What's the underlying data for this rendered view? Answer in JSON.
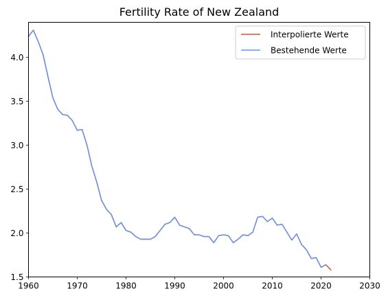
{
  "chart_data": {
    "type": "line",
    "title": "Fertility Rate of New Zealand",
    "xlabel": "",
    "ylabel": "",
    "xlim": [
      1960,
      2030
    ],
    "ylim": [
      1.5,
      4.4
    ],
    "x_ticks": [
      1960,
      1970,
      1980,
      1990,
      2000,
      2010,
      2020,
      2030
    ],
    "y_ticks": [
      1.5,
      2.0,
      2.5,
      3.0,
      3.5,
      4.0
    ],
    "y_tick_labels": [
      "1.5",
      "2.0",
      "2.5",
      "3.0",
      "3.5",
      "4.0"
    ],
    "grid": false,
    "legend_position": "top-right",
    "series": [
      {
        "name": "Interpolierte Werte",
        "color": "#e8501e",
        "x": [
          1960,
          1961,
          1962,
          1963,
          1964,
          1965,
          1966,
          1967,
          1968,
          1969,
          1970,
          1971,
          1972,
          1973,
          1974,
          1975,
          1976,
          1977,
          1978,
          1979,
          1980,
          1981,
          1982,
          1983,
          1984,
          1985,
          1986,
          1987,
          1988,
          1989,
          1990,
          1991,
          1992,
          1993,
          1994,
          1995,
          1996,
          1997,
          1998,
          1999,
          2000,
          2001,
          2002,
          2003,
          2004,
          2005,
          2006,
          2007,
          2008,
          2009,
          2010,
          2011,
          2012,
          2013,
          2014,
          2015,
          2016,
          2017,
          2018,
          2019,
          2020,
          2021,
          2022
        ],
        "values": [
          4.24,
          4.31,
          4.18,
          4.03,
          3.78,
          3.54,
          3.41,
          3.35,
          3.34,
          3.28,
          3.17,
          3.18,
          3.0,
          2.76,
          2.58,
          2.37,
          2.27,
          2.21,
          2.07,
          2.12,
          2.03,
          2.01,
          1.96,
          1.93,
          1.93,
          1.93,
          1.96,
          2.03,
          2.1,
          2.12,
          2.18,
          2.09,
          2.07,
          2.05,
          1.98,
          1.98,
          1.96,
          1.96,
          1.89,
          1.97,
          1.98,
          1.97,
          1.89,
          1.93,
          1.98,
          1.97,
          2.01,
          2.18,
          2.19,
          2.13,
          2.17,
          2.09,
          2.1,
          2.01,
          1.92,
          1.99,
          1.87,
          1.81,
          1.71,
          1.72,
          1.61,
          1.64,
          1.58
        ]
      },
      {
        "name": "Bestehende Werte",
        "color": "#6495ed",
        "x": [
          1960,
          1961,
          1962,
          1963,
          1964,
          1965,
          1966,
          1967,
          1968,
          1969,
          1970,
          1971,
          1972,
          1973,
          1974,
          1975,
          1976,
          1977,
          1978,
          1979,
          1980,
          1981,
          1982,
          1983,
          1984,
          1985,
          1986,
          1987,
          1988,
          1989,
          1990,
          1991,
          1992,
          1993,
          1994,
          1995,
          1996,
          1997,
          1998,
          1999,
          2000,
          2001,
          2002,
          2003,
          2004,
          2005,
          2006,
          2007,
          2008,
          2009,
          2010,
          2011,
          2012,
          2013,
          2014,
          2015,
          2016,
          2017,
          2018,
          2019,
          2020,
          2021
        ],
        "values": [
          4.24,
          4.31,
          4.18,
          4.03,
          3.78,
          3.54,
          3.41,
          3.35,
          3.34,
          3.28,
          3.17,
          3.18,
          3.0,
          2.76,
          2.58,
          2.37,
          2.27,
          2.21,
          2.07,
          2.12,
          2.03,
          2.01,
          1.96,
          1.93,
          1.93,
          1.93,
          1.96,
          2.03,
          2.1,
          2.12,
          2.18,
          2.09,
          2.07,
          2.05,
          1.98,
          1.98,
          1.96,
          1.96,
          1.89,
          1.97,
          1.98,
          1.97,
          1.89,
          1.93,
          1.98,
          1.97,
          2.01,
          2.18,
          2.19,
          2.13,
          2.17,
          2.09,
          2.1,
          2.01,
          1.92,
          1.99,
          1.87,
          1.81,
          1.71,
          1.72,
          1.61,
          1.64
        ]
      }
    ]
  }
}
